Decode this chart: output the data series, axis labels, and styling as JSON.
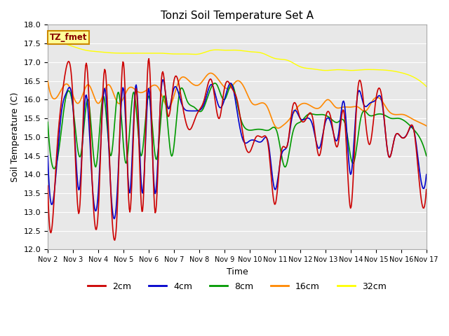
{
  "title": "Tonzi Soil Temperature Set A",
  "xlabel": "Time",
  "ylabel": "Soil Temperature (C)",
  "ylim": [
    12.0,
    18.0
  ],
  "colors": {
    "2cm": "#cc0000",
    "4cm": "#0000cc",
    "8cm": "#009900",
    "16cm": "#ff8800",
    "32cm": "#ffff00"
  },
  "bg_color": "#e8e8e8",
  "annotation_text": "TZ_fmet",
  "annotation_fg": "#880000",
  "annotation_bg": "#ffff99",
  "annotation_border": "#cc8800",
  "xtick_labels": [
    "Nov 2",
    "Nov 3",
    "Nov 4",
    "Nov 5",
    "Nov 6",
    "Nov 7",
    "Nov 8",
    "Nov 9",
    "Nov 10",
    "Nov 11",
    "Nov 12",
    "Nov 13",
    "Nov 14",
    "Nov 15",
    "Nov 16",
    "Nov 17"
  ],
  "yticks": [
    12.0,
    12.5,
    13.0,
    13.5,
    14.0,
    14.5,
    15.0,
    15.5,
    16.0,
    16.5,
    17.0,
    17.5,
    18.0
  ],
  "t_2cm": [
    0.0,
    0.15,
    0.35,
    0.55,
    0.75,
    1.0,
    1.25,
    1.5,
    1.75,
    2.0,
    2.25,
    2.5,
    2.75,
    3.0,
    3.25,
    3.5,
    3.75,
    4.0,
    4.25,
    4.5,
    4.75,
    5.0,
    5.3,
    5.6,
    5.9,
    6.2,
    6.5,
    6.8,
    7.0,
    7.3,
    7.5,
    7.75,
    8.0,
    8.25,
    8.5,
    8.75,
    9.0,
    9.25,
    9.5,
    9.7,
    10.0,
    10.25,
    10.5,
    10.75,
    11.0,
    11.25,
    11.5,
    11.75,
    12.0,
    12.25,
    12.5,
    12.75,
    13.0,
    13.25,
    13.5,
    13.75,
    14.0,
    14.25,
    14.5,
    14.75,
    15.0
  ],
  "v_2cm": [
    13.7,
    12.5,
    14.5,
    16.0,
    16.9,
    16.0,
    13.0,
    16.9,
    14.0,
    13.0,
    16.8,
    13.5,
    13.0,
    17.0,
    13.0,
    16.3,
    13.0,
    17.1,
    13.0,
    16.5,
    15.6,
    16.5,
    16.0,
    15.2,
    15.6,
    16.0,
    16.5,
    15.5,
    16.3,
    16.3,
    16.0,
    15.0,
    14.6,
    15.0,
    15.0,
    14.7,
    13.2,
    14.6,
    14.8,
    15.8,
    15.5,
    15.5,
    15.5,
    14.5,
    15.5,
    15.4,
    14.8,
    15.6,
    13.1,
    16.0,
    16.0,
    14.8,
    16.0,
    16.0,
    14.5,
    15.0,
    15.0,
    15.1,
    15.2,
    13.6,
    13.6
  ],
  "t_4cm": [
    0.0,
    0.15,
    0.35,
    0.55,
    0.75,
    1.0,
    1.25,
    1.5,
    1.75,
    2.0,
    2.25,
    2.5,
    2.75,
    3.0,
    3.25,
    3.5,
    3.75,
    4.0,
    4.25,
    4.5,
    4.75,
    5.0,
    5.3,
    5.6,
    5.9,
    6.2,
    6.5,
    6.8,
    7.0,
    7.3,
    7.5,
    7.75,
    8.0,
    8.25,
    8.5,
    8.75,
    9.0,
    9.25,
    9.5,
    9.7,
    10.0,
    10.25,
    10.5,
    10.75,
    11.0,
    11.25,
    11.5,
    11.75,
    12.0,
    12.25,
    12.5,
    12.75,
    13.0,
    13.25,
    13.5,
    13.75,
    14.0,
    14.25,
    14.5,
    14.75,
    15.0
  ],
  "v_4cm": [
    14.5,
    13.2,
    14.2,
    15.7,
    16.2,
    15.8,
    13.6,
    16.1,
    13.9,
    13.5,
    16.3,
    13.6,
    13.5,
    16.3,
    13.5,
    16.4,
    13.5,
    16.3,
    13.5,
    16.3,
    15.8,
    16.3,
    15.9,
    15.7,
    15.7,
    15.9,
    16.4,
    15.8,
    16.0,
    16.4,
    15.7,
    14.9,
    14.9,
    14.9,
    14.9,
    14.8,
    13.6,
    14.5,
    14.8,
    15.6,
    15.5,
    15.5,
    15.3,
    14.7,
    15.4,
    15.3,
    15.0,
    15.9,
    14.0,
    16.0,
    15.9,
    15.9,
    16.0,
    15.9,
    14.5,
    15.0,
    15.0,
    15.1,
    15.2,
    14.0,
    14.0
  ],
  "t_8cm": [
    0.0,
    0.2,
    0.45,
    0.7,
    1.0,
    1.3,
    1.6,
    1.9,
    2.2,
    2.5,
    2.8,
    3.1,
    3.4,
    3.7,
    4.0,
    4.3,
    4.6,
    4.9,
    5.2,
    5.5,
    5.8,
    6.1,
    6.4,
    6.7,
    7.0,
    7.3,
    7.6,
    7.9,
    8.2,
    8.5,
    8.8,
    9.1,
    9.4,
    9.7,
    10.0,
    10.3,
    10.6,
    10.9,
    11.2,
    11.5,
    11.8,
    12.1,
    12.4,
    12.7,
    13.0,
    13.3,
    13.6,
    13.9,
    14.2,
    14.5,
    14.8,
    15.0
  ],
  "v_8cm": [
    15.4,
    14.2,
    14.7,
    16.0,
    15.8,
    14.5,
    16.0,
    14.2,
    16.1,
    14.5,
    16.2,
    14.3,
    16.2,
    14.5,
    16.1,
    14.4,
    16.1,
    14.5,
    16.1,
    16.0,
    15.8,
    15.7,
    16.2,
    16.4,
    16.0,
    16.4,
    15.6,
    15.2,
    15.2,
    15.2,
    15.2,
    15.1,
    14.2,
    15.1,
    15.4,
    15.6,
    15.6,
    15.6,
    15.5,
    15.4,
    15.3,
    14.3,
    15.5,
    15.6,
    15.6,
    15.6,
    15.5,
    15.5,
    15.4,
    15.2,
    14.9,
    14.5
  ],
  "t_16cm": [
    0.0,
    0.4,
    0.8,
    1.2,
    1.6,
    2.0,
    2.4,
    2.8,
    3.2,
    3.6,
    4.0,
    4.4,
    4.8,
    5.2,
    5.6,
    6.0,
    6.4,
    6.8,
    7.2,
    7.5,
    7.8,
    8.1,
    8.4,
    8.7,
    9.0,
    9.3,
    9.6,
    9.9,
    10.2,
    10.5,
    10.8,
    11.1,
    11.4,
    11.7,
    12.0,
    12.3,
    12.6,
    12.9,
    13.2,
    13.5,
    13.8,
    14.1,
    14.4,
    14.7,
    15.0
  ],
  "v_16cm": [
    16.5,
    16.1,
    16.4,
    15.9,
    16.4,
    15.9,
    16.4,
    15.9,
    16.3,
    16.2,
    16.3,
    16.3,
    15.8,
    16.5,
    16.5,
    16.4,
    16.7,
    16.5,
    16.3,
    16.5,
    16.3,
    15.9,
    15.9,
    15.8,
    15.3,
    15.3,
    15.5,
    15.8,
    15.9,
    15.8,
    15.8,
    16.0,
    15.8,
    15.8,
    15.8,
    15.8,
    15.7,
    16.0,
    16.0,
    15.7,
    15.6,
    15.6,
    15.5,
    15.4,
    15.3
  ],
  "t_32cm": [
    0,
    0.5,
    1,
    1.5,
    2,
    2.5,
    3,
    3.5,
    4,
    4.5,
    5,
    5.5,
    6,
    6.5,
    7,
    7.5,
    8,
    8.5,
    9,
    9.5,
    10,
    10.5,
    11,
    11.5,
    12,
    12.5,
    13,
    13.5,
    14,
    14.5,
    15
  ],
  "v_32cm": [
    17.8,
    17.55,
    17.42,
    17.32,
    17.28,
    17.25,
    17.24,
    17.24,
    17.24,
    17.24,
    17.22,
    17.22,
    17.22,
    17.32,
    17.32,
    17.32,
    17.28,
    17.24,
    17.1,
    17.05,
    16.88,
    16.82,
    16.78,
    16.8,
    16.78,
    16.8,
    16.8,
    16.78,
    16.72,
    16.6,
    16.35
  ]
}
